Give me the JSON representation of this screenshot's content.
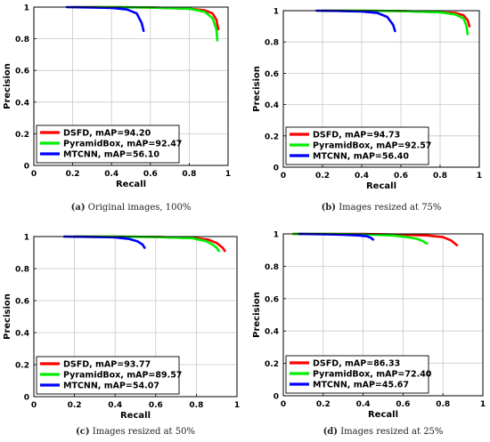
{
  "chart_data": [
    {
      "type": "line",
      "caption_prefix": "(a)",
      "caption_text": " Original images, 100%",
      "xlabel": "Recall",
      "ylabel": "Precision",
      "xlim": [
        0,
        1
      ],
      "ylim": [
        0,
        1
      ],
      "xticks": [
        "0",
        "0.2",
        "0.4",
        "0.6",
        "0.8",
        "1"
      ],
      "yticks": [
        "0",
        "0.2",
        "0.4",
        "0.6",
        "0.8",
        "1"
      ],
      "grid": true,
      "legend_position": "bottom-left",
      "series": [
        {
          "label": "DSFD, mAP=94.20",
          "color": "#ff0000",
          "x": [
            0.2,
            0.4,
            0.6,
            0.8,
            0.88,
            0.92,
            0.94,
            0.95
          ],
          "y": [
            1.0,
            1.0,
            0.998,
            0.99,
            0.98,
            0.96,
            0.92,
            0.86
          ]
        },
        {
          "label": "PyramidBox, mAP=92.47",
          "color": "#00ee00",
          "x": [
            0.2,
            0.4,
            0.6,
            0.8,
            0.88,
            0.92,
            0.94,
            0.945
          ],
          "y": [
            1.0,
            1.0,
            0.998,
            0.99,
            0.97,
            0.93,
            0.86,
            0.79
          ]
        },
        {
          "label": "MTCNN, mAP=56.10",
          "color": "#0000ff",
          "x": [
            0.17,
            0.3,
            0.4,
            0.48,
            0.53,
            0.555,
            0.565
          ],
          "y": [
            1.0,
            0.998,
            0.995,
            0.985,
            0.96,
            0.9,
            0.85
          ]
        }
      ]
    },
    {
      "type": "line",
      "caption_prefix": "(b)",
      "caption_text": " Images resized at 75%",
      "xlabel": "Recall",
      "ylabel": "Precision",
      "xlim": [
        0,
        1
      ],
      "ylim": [
        0,
        1
      ],
      "xticks": [
        "0",
        "0.2",
        "0.4",
        "0.6",
        "0.8",
        "1"
      ],
      "yticks": [
        "0",
        "0.2",
        "0.4",
        "0.6",
        "0.8",
        "1"
      ],
      "grid": true,
      "legend_position": "bottom-left",
      "series": [
        {
          "label": "DSFD, mAP=94.73",
          "color": "#ff0000",
          "x": [
            0.2,
            0.4,
            0.6,
            0.8,
            0.88,
            0.92,
            0.94,
            0.95
          ],
          "y": [
            1.0,
            1.0,
            0.998,
            0.99,
            0.985,
            0.97,
            0.94,
            0.9
          ]
        },
        {
          "label": "PyramidBox, mAP=92.57",
          "color": "#00ee00",
          "x": [
            0.2,
            0.4,
            0.6,
            0.8,
            0.88,
            0.92,
            0.935,
            0.94
          ],
          "y": [
            1.0,
            1.0,
            0.998,
            0.99,
            0.975,
            0.95,
            0.9,
            0.85
          ]
        },
        {
          "label": "MTCNN, mAP=56.40",
          "color": "#0000ff",
          "x": [
            0.17,
            0.3,
            0.4,
            0.48,
            0.53,
            0.56,
            0.57
          ],
          "y": [
            1.0,
            0.998,
            0.995,
            0.985,
            0.96,
            0.91,
            0.87
          ]
        }
      ]
    },
    {
      "type": "line",
      "caption_prefix": "(c)",
      "caption_text": " Images resized at 50%",
      "xlabel": "Recall",
      "ylabel": "Precision",
      "xlim": [
        0,
        1
      ],
      "ylim": [
        0,
        1
      ],
      "xticks": [
        "0",
        "0.2",
        "0.4",
        "0.6",
        "0.8",
        "1"
      ],
      "yticks": [
        "0",
        "0.2",
        "0.4",
        "0.6",
        "0.8",
        "1"
      ],
      "grid": true,
      "legend_position": "bottom-left",
      "series": [
        {
          "label": "DSFD, mAP=93.77",
          "color": "#ff0000",
          "x": [
            0.2,
            0.4,
            0.6,
            0.8,
            0.86,
            0.9,
            0.93,
            0.94
          ],
          "y": [
            1.0,
            1.0,
            0.998,
            0.99,
            0.98,
            0.96,
            0.93,
            0.91
          ]
        },
        {
          "label": "PyramidBox, mAP=89.57",
          "color": "#00ee00",
          "x": [
            0.2,
            0.4,
            0.6,
            0.78,
            0.85,
            0.88,
            0.9,
            0.91
          ],
          "y": [
            1.0,
            1.0,
            0.998,
            0.99,
            0.97,
            0.95,
            0.93,
            0.91
          ]
        },
        {
          "label": "MTCNN, mAP=54.07",
          "color": "#0000ff",
          "x": [
            0.15,
            0.3,
            0.4,
            0.47,
            0.51,
            0.535,
            0.545
          ],
          "y": [
            1.0,
            0.998,
            0.995,
            0.985,
            0.97,
            0.95,
            0.93
          ]
        }
      ]
    },
    {
      "type": "line",
      "caption_prefix": "(d)",
      "caption_text": " Images resized at 25%",
      "xlabel": "Recall",
      "ylabel": "Precision",
      "xlim": [
        0,
        1
      ],
      "ylim": [
        0,
        1
      ],
      "xticks": [
        "0",
        "0.2",
        "0.4",
        "0.6",
        "0.8",
        "1"
      ],
      "yticks": [
        "0",
        "0.2",
        "0.4",
        "0.6",
        "0.8",
        "1"
      ],
      "grid": true,
      "legend_position": "bottom-left",
      "series": [
        {
          "label": "DSFD, mAP=86.33",
          "color": "#ff0000",
          "x": [
            0.05,
            0.2,
            0.4,
            0.6,
            0.72,
            0.8,
            0.84,
            0.87
          ],
          "y": [
            1.0,
            1.0,
            1.0,
            0.995,
            0.99,
            0.98,
            0.96,
            0.93
          ]
        },
        {
          "label": "PyramidBox, mAP=72.40",
          "color": "#00ee00",
          "x": [
            0.05,
            0.2,
            0.4,
            0.55,
            0.62,
            0.67,
            0.7,
            0.72
          ],
          "y": [
            1.0,
            1.0,
            0.998,
            0.99,
            0.98,
            0.97,
            0.955,
            0.94
          ]
        },
        {
          "label": "MTCNN, mAP=45.67",
          "color": "#0000ff",
          "x": [
            0.08,
            0.2,
            0.3,
            0.38,
            0.42,
            0.44,
            0.45
          ],
          "y": [
            1.0,
            0.998,
            0.995,
            0.99,
            0.985,
            0.975,
            0.965
          ]
        }
      ]
    }
  ]
}
